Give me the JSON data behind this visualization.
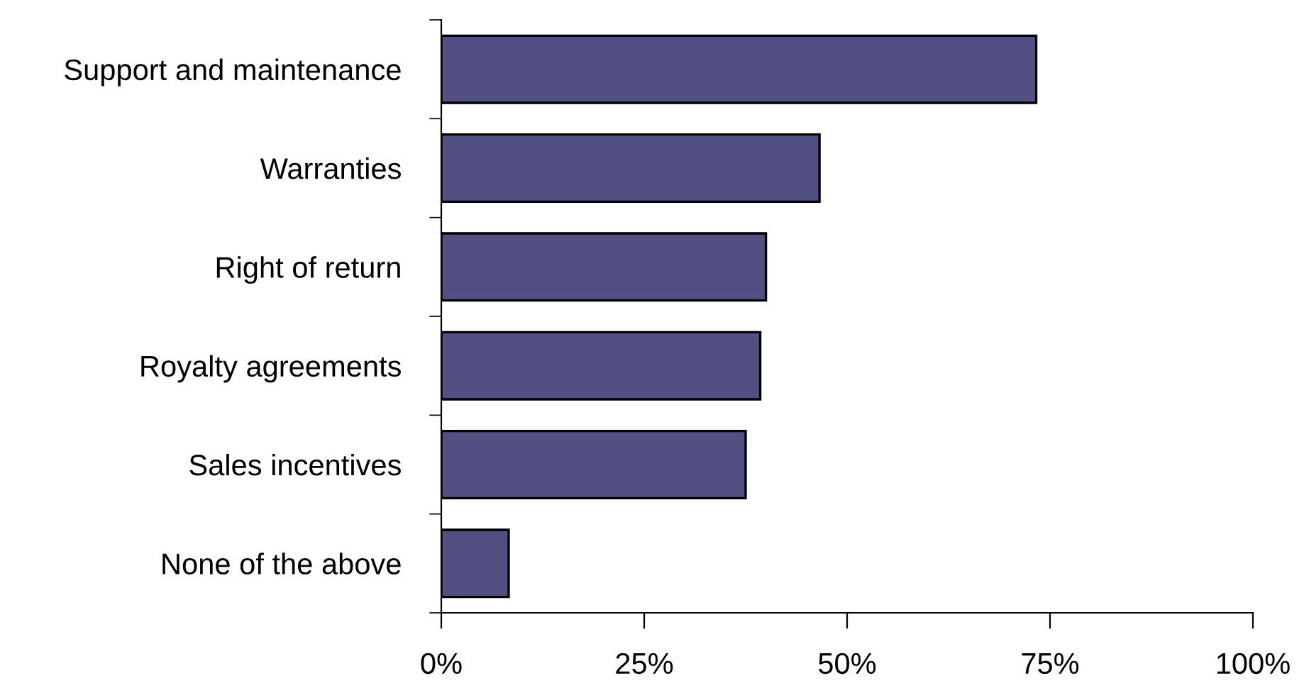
{
  "chart_data": {
    "type": "bar",
    "orientation": "horizontal",
    "categories": [
      "Support and maintenance",
      "Warranties",
      "Right of return",
      "Royalty agreements",
      "Sales incentives",
      "None of the above"
    ],
    "values": [
      73.3,
      46.6,
      40.0,
      39.3,
      37.5,
      8.3
    ],
    "color": "#524f82",
    "xlim": [
      0,
      100
    ],
    "xticks": [
      {
        "value": 0,
        "label": "0%"
      },
      {
        "value": 25,
        "label": "25%"
      },
      {
        "value": 50,
        "label": "50%"
      },
      {
        "value": 75,
        "label": "75%"
      },
      {
        "value": 100,
        "label": "100%"
      }
    ],
    "grid": false,
    "legend": false
  }
}
